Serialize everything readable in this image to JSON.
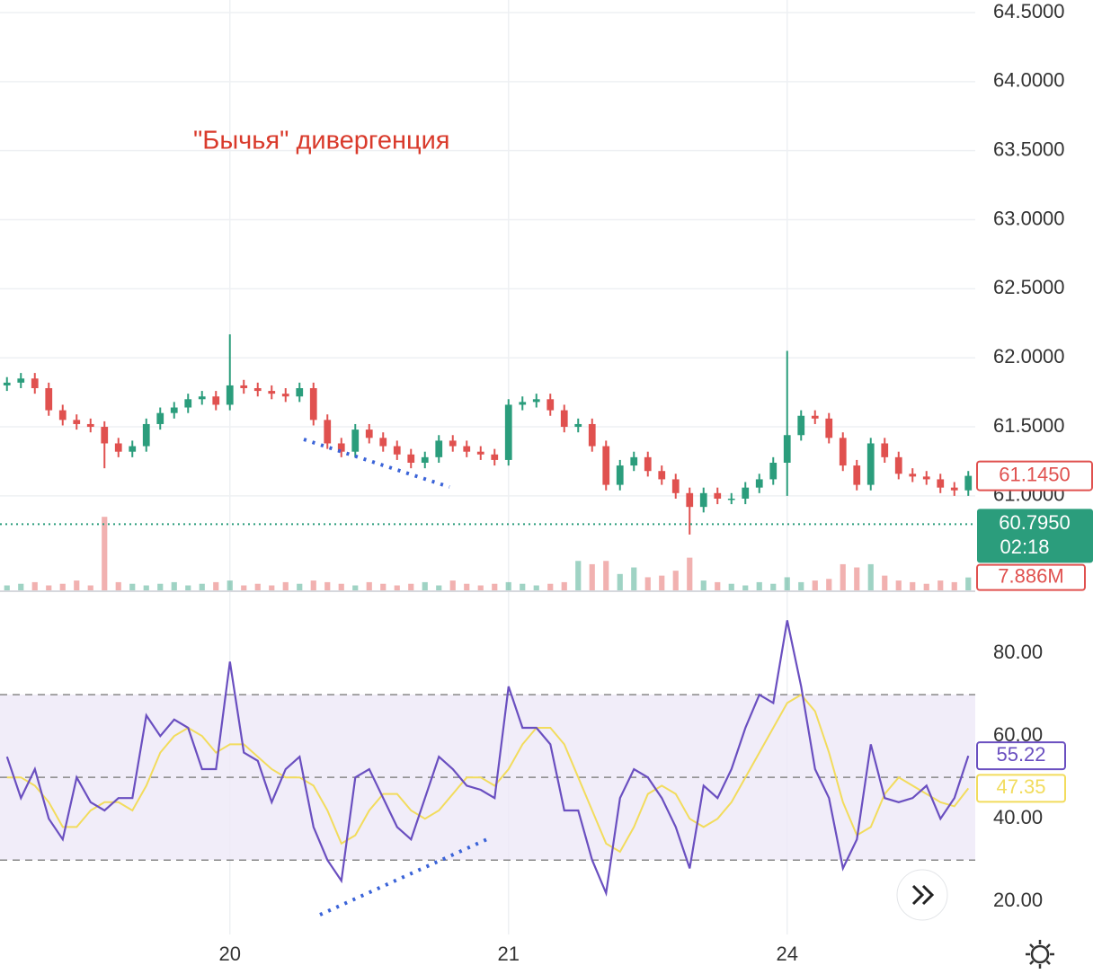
{
  "chart_data": [
    {
      "type": "candlestick",
      "annotation": "\"Бычья\" дивергенция",
      "categories": [
        null,
        null,
        null,
        null,
        null,
        null,
        null,
        null,
        null,
        null,
        null,
        null,
        null,
        null,
        null,
        null,
        "20",
        null,
        null,
        null,
        null,
        null,
        null,
        null,
        null,
        null,
        null,
        null,
        null,
        null,
        null,
        null,
        null,
        null,
        null,
        null,
        "21",
        null,
        null,
        null,
        null,
        null,
        null,
        null,
        null,
        null,
        null,
        null,
        null,
        null,
        null,
        null,
        null,
        null,
        null,
        null,
        "24",
        null,
        null,
        null,
        null,
        null,
        null,
        null,
        null,
        null,
        null,
        null,
        null,
        null
      ],
      "open": [
        61.8,
        61.82,
        61.85,
        61.78,
        61.62,
        61.55,
        61.52,
        61.5,
        61.38,
        61.32,
        61.36,
        61.52,
        61.6,
        61.64,
        61.7,
        61.72,
        61.66,
        61.8,
        61.78,
        61.76,
        61.74,
        61.72,
        61.78,
        61.55,
        61.38,
        61.32,
        61.48,
        61.42,
        61.36,
        61.3,
        61.24,
        61.28,
        61.4,
        61.36,
        61.32,
        61.3,
        61.26,
        61.66,
        61.68,
        61.7,
        61.62,
        61.5,
        61.52,
        61.36,
        61.08,
        61.22,
        61.28,
        61.18,
        61.12,
        61.02,
        60.92,
        61.02,
        60.98,
        60.98,
        61.06,
        61.12,
        61.24,
        61.44,
        61.58,
        61.56,
        61.42,
        61.22,
        61.08,
        61.38,
        61.28,
        61.16,
        61.14,
        61.12,
        61.06,
        61.04
      ],
      "high": [
        61.86,
        61.89,
        61.89,
        61.82,
        61.66,
        61.59,
        61.56,
        61.54,
        61.42,
        61.4,
        61.56,
        61.64,
        61.68,
        61.74,
        61.76,
        61.76,
        62.17,
        61.84,
        61.82,
        61.8,
        61.78,
        61.82,
        61.82,
        61.59,
        61.42,
        61.52,
        61.52,
        61.46,
        61.4,
        61.34,
        61.32,
        61.44,
        61.44,
        61.4,
        61.36,
        61.34,
        61.7,
        61.72,
        61.74,
        61.74,
        61.66,
        61.56,
        61.56,
        61.4,
        61.26,
        61.32,
        61.32,
        61.22,
        61.16,
        61.06,
        61.06,
        61.06,
        61.02,
        61.1,
        61.16,
        61.28,
        62.05,
        61.62,
        61.62,
        61.6,
        61.46,
        61.26,
        61.42,
        61.42,
        61.32,
        61.2,
        61.18,
        61.16,
        61.1,
        61.18
      ],
      "low": [
        61.76,
        61.78,
        61.74,
        61.58,
        61.51,
        61.48,
        61.46,
        61.2,
        61.28,
        61.28,
        61.32,
        61.48,
        61.56,
        61.6,
        61.66,
        61.62,
        61.62,
        61.74,
        61.72,
        61.7,
        61.68,
        61.68,
        61.51,
        61.34,
        61.28,
        61.28,
        61.38,
        61.32,
        61.26,
        61.2,
        61.2,
        61.24,
        61.32,
        61.28,
        61.26,
        61.22,
        61.22,
        61.62,
        61.64,
        61.58,
        61.46,
        61.46,
        61.32,
        61.04,
        61.04,
        61.18,
        61.14,
        61.08,
        60.98,
        60.72,
        60.88,
        60.94,
        60.94,
        60.94,
        61.02,
        61.08,
        61.0,
        61.4,
        61.52,
        61.38,
        61.18,
        61.04,
        61.04,
        61.24,
        61.12,
        61.1,
        61.08,
        61.02,
        61.0,
        61.0
      ],
      "close": [
        61.82,
        61.85,
        61.78,
        61.62,
        61.55,
        61.52,
        61.5,
        61.38,
        61.32,
        61.36,
        61.52,
        61.6,
        61.64,
        61.7,
        61.72,
        61.66,
        61.8,
        61.78,
        61.76,
        61.74,
        61.72,
        61.78,
        61.55,
        61.38,
        61.32,
        61.48,
        61.42,
        61.36,
        61.3,
        61.24,
        61.28,
        61.4,
        61.36,
        61.32,
        61.3,
        61.26,
        61.66,
        61.68,
        61.7,
        61.62,
        61.5,
        61.52,
        61.36,
        61.08,
        61.22,
        61.28,
        61.18,
        61.12,
        61.02,
        60.92,
        61.02,
        60.98,
        60.98,
        61.06,
        61.12,
        61.24,
        61.44,
        61.58,
        61.56,
        61.42,
        61.22,
        61.08,
        61.38,
        61.28,
        61.16,
        61.14,
        61.12,
        61.06,
        61.04,
        61.145
      ],
      "up_color": "#2b9d7c",
      "down_color": "#e0514f",
      "ylim": [
        60.316,
        64.591
      ],
      "yticks": [
        {
          "value": 61,
          "label": "61.0000"
        },
        {
          "value": 61.5,
          "label": "61.5000"
        },
        {
          "value": 62,
          "label": "62.0000"
        },
        {
          "value": 62.5,
          "label": "62.5000"
        },
        {
          "value": 63,
          "label": "63.0000"
        },
        {
          "value": 63.5,
          "label": "63.5000"
        },
        {
          "value": 64,
          "label": "64.0000"
        },
        {
          "value": 64.5,
          "label": "64.5000"
        }
      ],
      "grid": true,
      "volume": [
        3,
        4,
        5,
        3,
        4,
        6,
        3,
        45,
        5,
        4,
        3,
        4,
        5,
        3,
        4,
        5,
        6,
        3,
        4,
        3,
        5,
        4,
        6,
        5,
        4,
        3,
        5,
        4,
        3,
        4,
        5,
        3,
        6,
        4,
        3,
        4,
        5,
        4,
        3,
        4,
        5,
        18,
        16,
        18,
        10,
        14,
        8,
        9,
        12,
        20,
        6,
        5,
        4,
        3,
        5,
        4,
        8,
        5,
        6,
        7,
        16,
        14,
        16,
        9,
        6,
        5,
        4,
        6,
        5,
        7.886
      ],
      "volume_ylim": [
        0,
        55
      ],
      "last_close": {
        "value": 61.145,
        "label": "61.1450"
      },
      "current_price": {
        "value": 60.795,
        "label": "60.7950"
      },
      "countdown": "02:18",
      "last_volume": {
        "value": 7.886,
        "label": "7.886M"
      }
    },
    {
      "type": "line",
      "series": [
        {
          "color": "#6a4fc0",
          "values": [
            55,
            45,
            52,
            40,
            35,
            50,
            44,
            42,
            45,
            45,
            65,
            60,
            64,
            62,
            52,
            52,
            78,
            56,
            54,
            44,
            52,
            55,
            38,
            30,
            25,
            50,
            52,
            45,
            38,
            35,
            45,
            55,
            52,
            48,
            47,
            45,
            72,
            62,
            62,
            58,
            42,
            42,
            30,
            22,
            45,
            52,
            50,
            45,
            38,
            28,
            48,
            45,
            52,
            62,
            70,
            68,
            88,
            72,
            52,
            45,
            28,
            35,
            58,
            45,
            44,
            45,
            48,
            40,
            45,
            55.22
          ]
        },
        {
          "color": "#f2dc5d",
          "values": [
            50,
            50,
            48,
            44,
            38,
            38,
            42,
            44,
            44,
            42,
            48,
            56,
            60,
            62,
            60,
            56,
            58,
            58,
            55,
            52,
            50,
            50,
            48,
            42,
            34,
            36,
            42,
            46,
            46,
            42,
            40,
            42,
            46,
            50,
            50,
            48,
            52,
            58,
            62,
            62,
            58,
            50,
            42,
            34,
            32,
            38,
            46,
            48,
            46,
            40,
            38,
            40,
            44,
            50,
            56,
            62,
            68,
            70,
            66,
            56,
            44,
            36,
            38,
            46,
            50,
            48,
            46,
            44,
            43,
            47.35
          ]
        }
      ],
      "ylim": [
        12,
        94.6
      ],
      "yticks": [
        {
          "value": 20,
          "label": "20.00"
        },
        {
          "value": 40,
          "label": "40.00"
        },
        {
          "value": 60,
          "label": "60.00"
        },
        {
          "value": 80,
          "label": "80.00"
        }
      ],
      "band": [
        30,
        70
      ],
      "midline": 50
    }
  ]
}
